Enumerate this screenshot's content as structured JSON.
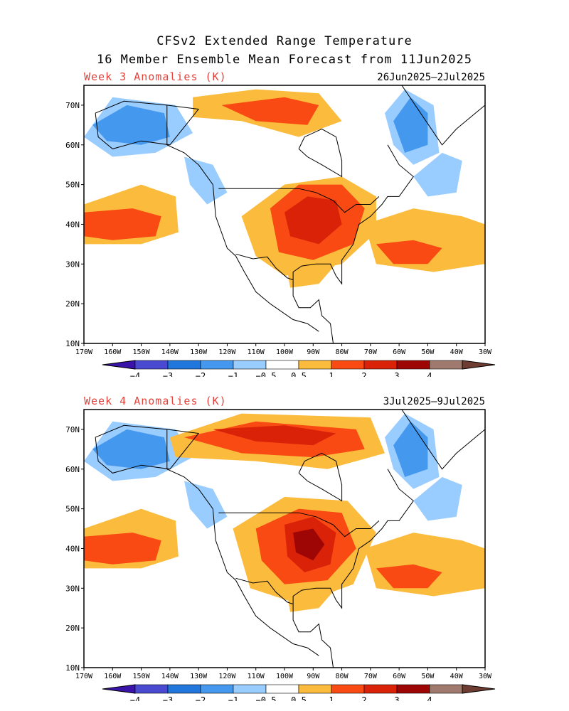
{
  "title_line1": "CFSv2 Extended Range Temperature",
  "title_line2": "16 Member Ensemble Mean Forecast from 11Jun2025",
  "panels": [
    {
      "label": "Week 3 Anomalies (K)",
      "date_range": "26Jun2025–2Jul2025"
    },
    {
      "label": "Week 4 Anomalies (K)",
      "date_range": "3Jul2025–9Jul2025"
    }
  ],
  "axes": {
    "lon_labels": [
      "170W",
      "160W",
      "150W",
      "140W",
      "130W",
      "120W",
      "110W",
      "100W",
      "90W",
      "80W",
      "70W",
      "60W",
      "50W",
      "40W",
      "30W"
    ],
    "lat_labels": [
      "70N",
      "60N",
      "50N",
      "40N",
      "30N",
      "20N",
      "10N"
    ]
  },
  "colorbar": {
    "ticks": [
      "−4",
      "−3",
      "−2",
      "−1",
      "−0.5",
      "0.5",
      "1",
      "2",
      "3",
      "4"
    ],
    "colors": [
      "#3a13a8",
      "#4a4ad0",
      "#2277dd",
      "#4499ee",
      "#99ccff",
      "#ffffff",
      "#fbbb3c",
      "#f84a12",
      "#d92208",
      "#9e0606",
      "#a07a6e",
      "#6e3c30"
    ]
  },
  "chart_data": {
    "type": "heatmap",
    "units": "K",
    "lon_range": [
      -170,
      -30
    ],
    "lat_range": [
      10,
      75
    ],
    "panels": [
      {
        "label": "Week 3 Anomalies (K)",
        "anomaly_regions": [
          {
            "area": "Alaska",
            "level": -1
          },
          {
            "area": "Canadian Arctic / Hudson Bay",
            "level": 1
          },
          {
            "area": "Central & Eastern US",
            "level": 2
          },
          {
            "area": "Midwest core",
            "level": 3
          },
          {
            "area": "Greenland / Labrador Sea",
            "level": -1
          },
          {
            "area": "NE Pacific",
            "level": 1
          },
          {
            "area": "Western Atlantic",
            "level": 0.5
          }
        ]
      },
      {
        "label": "Week 4 Anomalies (K)",
        "anomaly_regions": [
          {
            "area": "Alaska",
            "level": -1
          },
          {
            "area": "Northern Canada",
            "level": 2
          },
          {
            "area": "Central US",
            "level": 3
          },
          {
            "area": "Greenland",
            "level": -1
          },
          {
            "area": "NE Pacific",
            "level": 1
          },
          {
            "area": "Western Atlantic",
            "level": 1
          }
        ]
      }
    ]
  }
}
